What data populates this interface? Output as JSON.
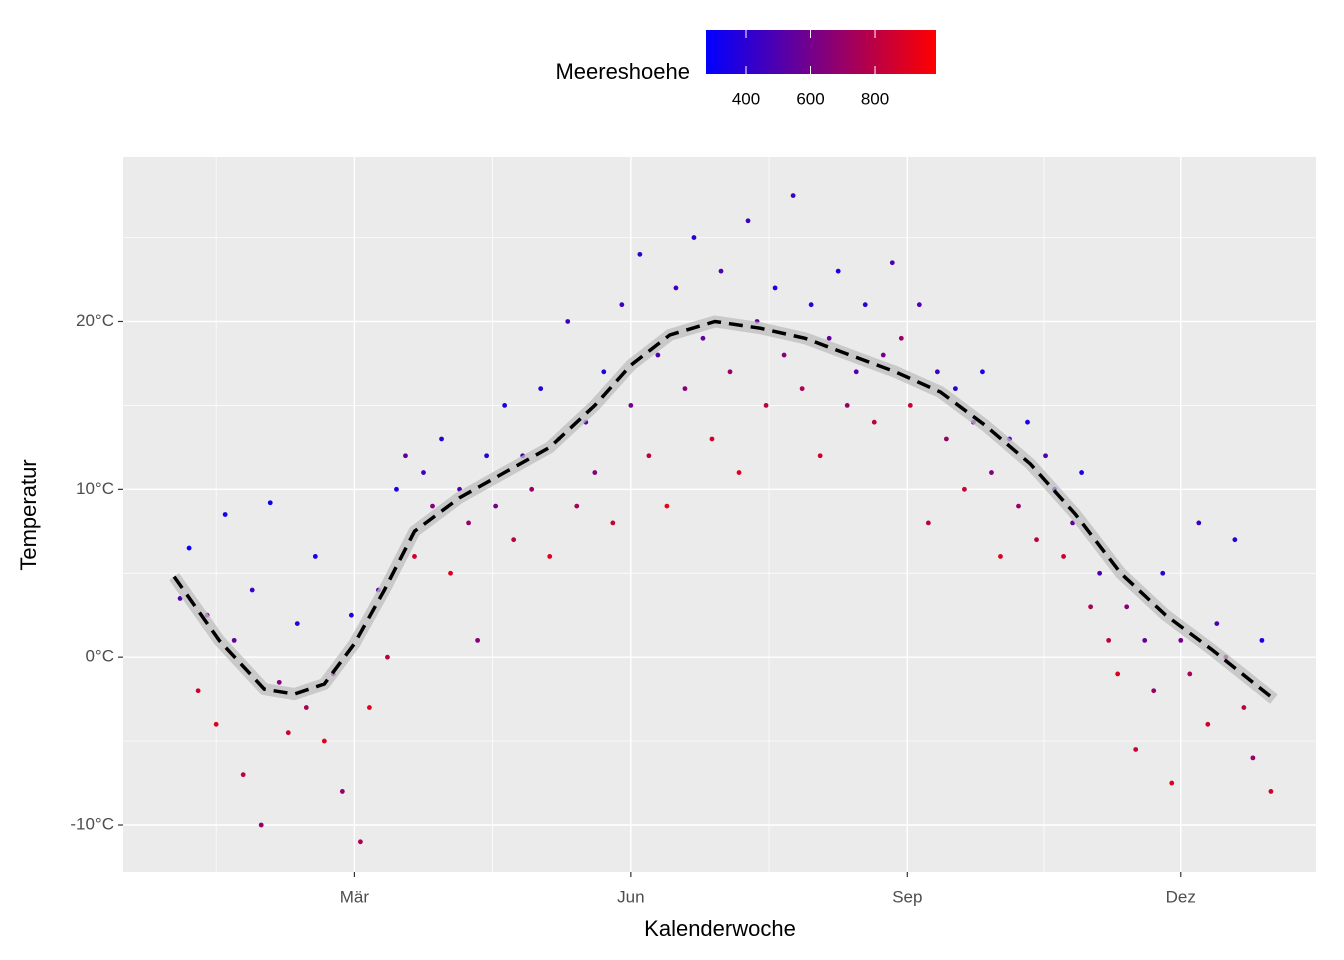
{
  "chart_data": {
    "type": "scatter",
    "x_label": "Kalenderwoche",
    "y_label": "Temperatur",
    "legend_title": "Meereshoehe",
    "xlim": [
      -17,
      380
    ],
    "xticks": [
      {
        "value": 60,
        "label": "Mär"
      },
      {
        "value": 152,
        "label": "Jun"
      },
      {
        "value": 244,
        "label": "Sep"
      },
      {
        "value": 335,
        "label": "Dez"
      }
    ],
    "ylim": [
      -12.8,
      29.8
    ],
    "yticks": [
      {
        "value": -10,
        "label": "-10°C"
      },
      {
        "value": 0,
        "label": "0°C"
      },
      {
        "value": 10,
        "label": "10°C"
      },
      {
        "value": 20,
        "label": "20°C"
      }
    ],
    "grid": true,
    "color_scale": {
      "low": "#0000ff",
      "high": "#ff0000",
      "lim": [
        276,
        989
      ],
      "ticks": [
        400,
        600,
        800
      ]
    },
    "x": [
      2,
      5,
      8,
      11,
      14,
      17,
      20,
      23,
      26,
      29,
      32,
      35,
      38,
      41,
      44,
      47,
      50,
      53,
      56,
      59,
      62,
      65,
      68,
      71,
      74,
      77,
      80,
      83,
      86,
      89,
      92,
      95,
      98,
      101,
      104,
      107,
      110,
      113,
      116,
      119,
      122,
      125,
      128,
      131,
      134,
      137,
      140,
      143,
      146,
      149,
      152,
      155,
      158,
      161,
      164,
      167,
      170,
      173,
      176,
      179,
      182,
      185,
      188,
      191,
      194,
      197,
      200,
      203,
      206,
      209,
      212,
      215,
      218,
      221,
      224,
      227,
      230,
      233,
      236,
      239,
      242,
      245,
      248,
      251,
      254,
      257,
      260,
      263,
      266,
      269,
      272,
      275,
      278,
      281,
      284,
      287,
      290,
      293,
      296,
      299,
      302,
      305,
      308,
      311,
      314,
      317,
      320,
      323,
      326,
      329,
      332,
      335,
      338,
      341,
      344,
      347,
      350,
      353,
      356,
      359,
      362,
      365
    ],
    "y": [
      3.5,
      6.5,
      -2,
      2.5,
      -4,
      8.5,
      1,
      -7,
      4,
      -10,
      9.2,
      -1.5,
      -4.5,
      2,
      -3,
      6,
      -5,
      -1,
      -8,
      2.5,
      -11,
      -3,
      4,
      0,
      10,
      12,
      6,
      11,
      9,
      13,
      5,
      10,
      8,
      1,
      12,
      9,
      15,
      7,
      12,
      10,
      16,
      6,
      13,
      20,
      9,
      14,
      11,
      17,
      8,
      21,
      15,
      24,
      12,
      18,
      9,
      22,
      16,
      25,
      19,
      13,
      23,
      17,
      11,
      26,
      20,
      15,
      22,
      18,
      27.5,
      16,
      21,
      12,
      19,
      23,
      15,
      17,
      21,
      14,
      18,
      23.5,
      19,
      15,
      21,
      8,
      17,
      13,
      16,
      10,
      14,
      17,
      11,
      6,
      13,
      9,
      14,
      7,
      12,
      10,
      6,
      8,
      11,
      3,
      5,
      1,
      -1,
      3,
      -5.5,
      1,
      -2,
      5,
      -7.5,
      1,
      -1,
      8,
      -4,
      2,
      0,
      7,
      -3,
      -6,
      1,
      -8
    ],
    "elevation": [
      500,
      300,
      850,
      600,
      900,
      350,
      550,
      800,
      450,
      700,
      300,
      650,
      850,
      400,
      750,
      350,
      900,
      600,
      700,
      350,
      750,
      900,
      500,
      800,
      350,
      550,
      850,
      450,
      650,
      400,
      900,
      500,
      700,
      650,
      400,
      600,
      350,
      800,
      500,
      700,
      400,
      900,
      550,
      450,
      750,
      500,
      650,
      350,
      850,
      450,
      600,
      400,
      800,
      500,
      950,
      450,
      650,
      400,
      550,
      850,
      500,
      700,
      900,
      450,
      550,
      800,
      350,
      650,
      450,
      750,
      400,
      850,
      550,
      350,
      700,
      500,
      400,
      800,
      600,
      500,
      700,
      850,
      500,
      800,
      450,
      700,
      400,
      850,
      550,
      350,
      650,
      900,
      450,
      700,
      350,
      800,
      500,
      300,
      850,
      550,
      350,
      750,
      500,
      800,
      900,
      650,
      850,
      550,
      700,
      400,
      900,
      600,
      750,
      450,
      850,
      500,
      650,
      400,
      800,
      700,
      350,
      850
    ],
    "smooth": {
      "x": [
        0,
        15,
        30,
        40,
        50,
        60,
        70,
        80,
        95,
        110,
        125,
        140,
        152,
        165,
        180,
        195,
        210,
        225,
        240,
        255,
        270,
        285,
        300,
        315,
        330,
        345,
        366
      ],
      "y": [
        4.8,
        1.0,
        -1.9,
        -2.2,
        -1.6,
        0.8,
        4.0,
        7.5,
        9.5,
        11.0,
        12.5,
        15.0,
        17.4,
        19.2,
        20.0,
        19.6,
        19.0,
        18.0,
        17.0,
        15.8,
        13.8,
        11.5,
        8.5,
        5.0,
        2.5,
        0.5,
        -2.5
      ]
    }
  }
}
